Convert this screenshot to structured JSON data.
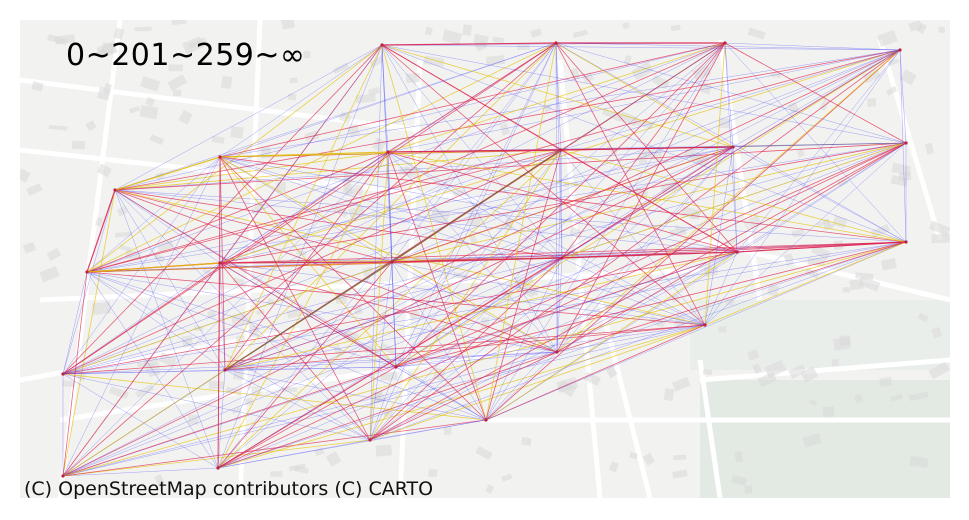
{
  "title": "0~201~259~∞",
  "attribution": "(C) OpenStreetMap contributors (C) CARTO",
  "legend_colors": {
    "band_low": "#3b3bff",
    "band_mid": "#e6c200",
    "band_high": "#e0204a"
  },
  "basemap": {
    "background": "#f2f2f0",
    "road": "#ffffff",
    "building": "#d9d9d9",
    "park": "#e3eae3"
  }
}
